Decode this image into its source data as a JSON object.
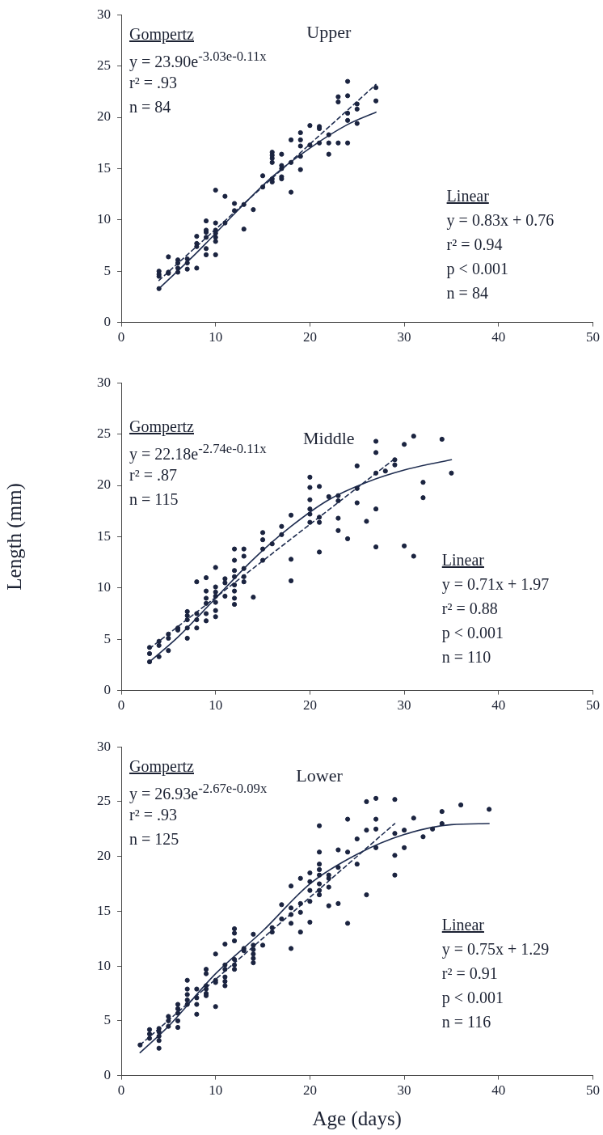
{
  "chart_data": [
    {
      "type": "scatter",
      "title": "Upper",
      "xlim": [
        0,
        50
      ],
      "xticks": [
        0,
        10,
        20,
        30,
        40,
        50
      ],
      "ylim": [
        0,
        30
      ],
      "yticks": [
        0,
        5,
        10,
        15,
        20,
        25,
        30
      ],
      "grid": false,
      "legend": false,
      "annotations": [
        "Gompertz",
        "y = 23.90e$^{-3.03e}$$^{-0.11x}$",
        "r² = .93",
        "n = 84",
        "Linear",
        "y = 0.83x + 0.76",
        "r² = 0.94",
        "p < 0.001",
        "n = 84"
      ],
      "series": [
        {
          "type": "scatter",
          "marker": "circle",
          "color": "#1b2440",
          "x": [
            4,
            4,
            4,
            4,
            5,
            5,
            5,
            6,
            6,
            6,
            6,
            7,
            7,
            7,
            8,
            8,
            8,
            8,
            9,
            9,
            9,
            9,
            9,
            9,
            10,
            10,
            10,
            10,
            10,
            10,
            10,
            11,
            11,
            12,
            12,
            13,
            13,
            14,
            15,
            15,
            16,
            16,
            16,
            16,
            16,
            16,
            17,
            17,
            17,
            17,
            17,
            18,
            18,
            18,
            19,
            19,
            19,
            19,
            19,
            20,
            20,
            21,
            21,
            21,
            22,
            22,
            22,
            23,
            23,
            23,
            24,
            24,
            24,
            24,
            24,
            25,
            25,
            25,
            27,
            27
          ],
          "values": [
            5.0,
            4.7,
            4.5,
            3.3,
            6.4,
            4.9,
            4.8,
            6.1,
            5.8,
            5.3,
            4.9,
            6.2,
            5.8,
            5.2,
            8.4,
            7.7,
            7.4,
            5.3,
            9.9,
            9.0,
            8.8,
            8.3,
            7.2,
            6.6,
            12.9,
            9.7,
            9.0,
            8.7,
            8.3,
            7.9,
            6.6,
            12.3,
            9.7,
            11.6,
            10.9,
            11.5,
            9.1,
            11.0,
            14.3,
            13.2,
            16.6,
            16.3,
            16.0,
            15.6,
            14.0,
            13.7,
            16.4,
            15.3,
            15.0,
            14.2,
            14.0,
            17.8,
            15.6,
            12.7,
            18.5,
            17.8,
            17.2,
            16.2,
            14.9,
            19.2,
            17.3,
            19.1,
            18.9,
            17.5,
            18.3,
            17.5,
            16.4,
            22.0,
            21.5,
            17.5,
            23.5,
            22.1,
            20.4,
            19.7,
            17.5,
            21.3,
            20.8,
            19.4,
            22.9,
            21.6
          ]
        },
        {
          "type": "line",
          "marker": "none",
          "line_style": "solid",
          "color": "#1f2d50",
          "x": [
            4,
            8,
            12,
            16,
            20,
            24,
            27
          ],
          "values": [
            3.3,
            6.8,
            10.6,
            14.2,
            17.0,
            19.3,
            20.5
          ]
        },
        {
          "type": "line",
          "marker": "none",
          "line_style": "dashed",
          "color": "#1f2d50",
          "x": [
            4,
            27
          ],
          "values": [
            4.1,
            23.2
          ]
        }
      ]
    },
    {
      "type": "scatter",
      "title": "Middle",
      "ylabel": "Length (mm)",
      "xlim": [
        0,
        50
      ],
      "xticks": [
        0,
        10,
        20,
        30,
        40,
        50
      ],
      "ylim": [
        0,
        30
      ],
      "yticks": [
        0,
        5,
        10,
        15,
        20,
        25,
        30
      ],
      "grid": false,
      "legend": false,
      "annotations": [
        "Gompertz",
        "y = 22.18e$^{-2.74e}$$^{-0.11x}$",
        "r² = .87",
        "n = 115",
        "Linear",
        "y = 0.71x + 1.97",
        "r² = 0.88",
        "p < 0.001",
        "n = 110"
      ],
      "series": [
        {
          "type": "scatter",
          "marker": "circle",
          "color": "#1b2440",
          "x": [
            3,
            3,
            3,
            4,
            4,
            4,
            5,
            5,
            5,
            6,
            6,
            7,
            7,
            7,
            7,
            7,
            8,
            8,
            8,
            8,
            9,
            9,
            9,
            9,
            9,
            9,
            10,
            10,
            10,
            10,
            10,
            10,
            10,
            11,
            11,
            11,
            12,
            12,
            12,
            12,
            12,
            12,
            12,
            12,
            13,
            13,
            13,
            13,
            13,
            14,
            15,
            15,
            15,
            15,
            16,
            17,
            17,
            18,
            18,
            18,
            20,
            20,
            20,
            20,
            20,
            20,
            21,
            21,
            21,
            21,
            22,
            23,
            23,
            23,
            23,
            24,
            25,
            25,
            25,
            26,
            27,
            27,
            27,
            27,
            27,
            28,
            29,
            29,
            30,
            30,
            31,
            31,
            32,
            32,
            34,
            35
          ],
          "values": [
            4.2,
            3.6,
            2.8,
            4.8,
            4.4,
            3.3,
            5.5,
            5.1,
            3.9,
            6.1,
            5.9,
            7.7,
            7.3,
            6.9,
            6.1,
            5.1,
            10.6,
            7.5,
            6.9,
            6.1,
            11.0,
            9.7,
            9.0,
            8.5,
            7.5,
            6.8,
            12.0,
            10.1,
            9.6,
            9.2,
            8.6,
            7.8,
            7.2,
            10.9,
            10.5,
            9.2,
            13.8,
            12.7,
            11.7,
            11.1,
            10.3,
            9.7,
            9.0,
            8.4,
            13.8,
            13.1,
            11.9,
            11.1,
            10.6,
            9.1,
            15.4,
            14.7,
            13.8,
            12.7,
            14.3,
            16.0,
            15.2,
            17.1,
            12.8,
            10.7,
            20.8,
            19.8,
            18.6,
            17.7,
            17.2,
            16.4,
            19.9,
            16.9,
            16.4,
            13.5,
            18.9,
            19.0,
            18.5,
            16.8,
            15.6,
            14.8,
            21.9,
            19.7,
            18.3,
            16.5,
            24.3,
            23.2,
            21.2,
            17.7,
            14.0,
            21.4,
            22.5,
            22.0,
            24.0,
            14.1,
            24.8,
            13.1,
            20.3,
            18.8,
            24.5,
            21.2
          ]
        },
        {
          "type": "line",
          "marker": "none",
          "line_style": "solid",
          "color": "#1f2d50",
          "x": [
            3,
            6,
            10,
            14,
            18,
            22,
            26,
            30,
            35
          ],
          "values": [
            2.8,
            5.2,
            9.0,
            12.8,
            16.0,
            18.6,
            20.3,
            21.5,
            22.5
          ]
        },
        {
          "type": "line",
          "marker": "none",
          "line_style": "dashed",
          "color": "#1f2d50",
          "x": [
            3,
            29
          ],
          "values": [
            4.1,
            22.6
          ]
        }
      ]
    },
    {
      "type": "scatter",
      "title": "Lower",
      "xlabel": "Age (days)",
      "xlim": [
        0,
        50
      ],
      "xticks": [
        0,
        10,
        20,
        30,
        40,
        50
      ],
      "ylim": [
        0,
        30
      ],
      "yticks": [
        0,
        5,
        10,
        15,
        20,
        25,
        30
      ],
      "grid": false,
      "legend": false,
      "annotations": [
        "Gompertz",
        "y = 26.93e$^{-2.67e}$$^{-0.09x}$",
        "r² = .93",
        "n = 125",
        "Linear",
        "y = 0.75x + 1.29",
        "r² = 0.91",
        "p < 0.001",
        "n = 116"
      ],
      "series": [
        {
          "type": "scatter",
          "marker": "circle",
          "color": "#1b2440",
          "x": [
            2,
            3,
            3,
            3,
            4,
            4,
            4,
            4,
            4,
            5,
            5,
            5,
            6,
            6,
            6,
            6,
            6,
            7,
            7,
            7,
            7,
            7,
            8,
            8,
            8,
            8,
            9,
            9,
            9,
            9,
            9,
            9,
            10,
            10,
            10,
            10,
            11,
            11,
            11,
            11,
            11,
            11,
            12,
            12,
            12,
            12,
            12,
            12,
            13,
            13,
            14,
            14,
            14,
            14,
            14,
            14,
            15,
            16,
            16,
            17,
            17,
            18,
            18,
            18,
            18,
            18,
            19,
            19,
            19,
            19,
            20,
            20,
            20,
            20,
            20,
            21,
            21,
            21,
            21,
            21,
            21,
            21,
            21,
            22,
            22,
            22,
            22,
            23,
            23,
            23,
            24,
            24,
            24,
            25,
            25,
            26,
            26,
            26,
            27,
            27,
            27,
            27,
            29,
            29,
            29,
            29,
            30,
            30,
            31,
            32,
            33,
            34,
            34,
            36,
            39
          ],
          "values": [
            2.8,
            4.2,
            3.8,
            3.4,
            4.3,
            4.0,
            3.6,
            3.2,
            2.5,
            5.4,
            5.0,
            4.5,
            6.5,
            6.1,
            5.7,
            5.0,
            4.4,
            8.7,
            7.9,
            7.4,
            6.9,
            6.5,
            7.9,
            7.1,
            6.5,
            5.6,
            9.7,
            9.3,
            8.2,
            7.9,
            7.5,
            7.3,
            11.1,
            8.7,
            8.5,
            6.3,
            12.0,
            10.1,
            9.7,
            9.0,
            8.6,
            8.2,
            13.4,
            13.0,
            12.3,
            10.6,
            10.1,
            9.7,
            11.6,
            11.4,
            12.9,
            11.9,
            11.5,
            11.1,
            10.7,
            10.3,
            11.9,
            13.5,
            13.1,
            15.6,
            14.3,
            17.3,
            15.3,
            14.7,
            13.9,
            11.6,
            18.0,
            15.7,
            14.9,
            13.1,
            18.5,
            17.7,
            16.9,
            15.9,
            14.0,
            22.8,
            20.4,
            19.3,
            18.8,
            18.3,
            17.5,
            16.9,
            16.5,
            18.3,
            18.0,
            17.2,
            15.5,
            20.6,
            19.0,
            15.7,
            23.4,
            20.4,
            13.9,
            21.6,
            19.3,
            25.0,
            22.4,
            16.5,
            25.3,
            23.4,
            22.5,
            20.8,
            25.2,
            22.1,
            20.1,
            18.3,
            22.4,
            20.8,
            23.5,
            21.8,
            22.5,
            24.1,
            23.0,
            24.7,
            24.3
          ]
        },
        {
          "type": "line",
          "marker": "none",
          "line_style": "solid",
          "color": "#1f2d50",
          "x": [
            2,
            5,
            10,
            15,
            20,
            25,
            30,
            35,
            39
          ],
          "values": [
            2.1,
            4.5,
            9.3,
            13.2,
            17.5,
            20.2,
            22.0,
            22.9,
            23.0
          ]
        },
        {
          "type": "line",
          "marker": "none",
          "line_style": "dashed",
          "color": "#1f2d50",
          "x": [
            2,
            29
          ],
          "values": [
            2.8,
            23.0
          ]
        }
      ]
    }
  ]
}
